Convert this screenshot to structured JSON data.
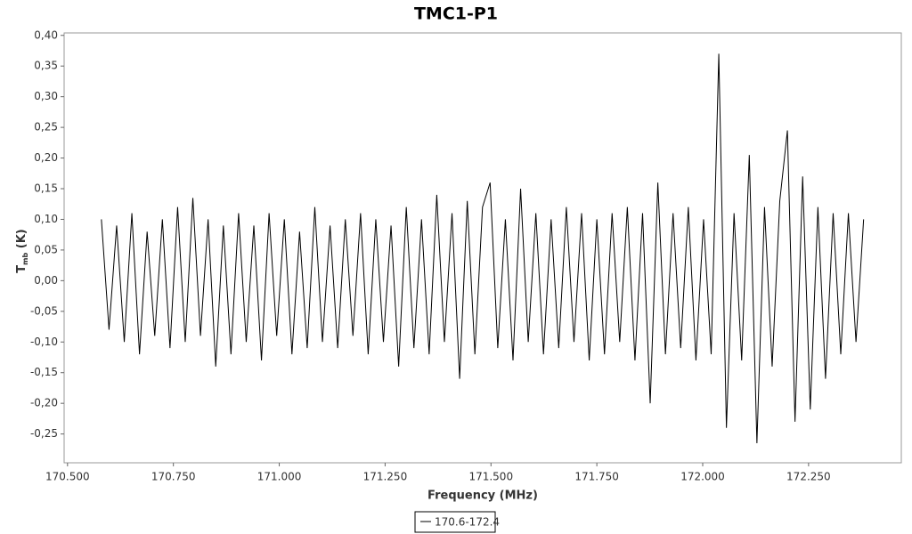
{
  "chart_data": {
    "type": "line",
    "title": "TMC1-P1",
    "x_label": "Frequency (MHz)",
    "y_label_parts": [
      "T",
      "mb",
      " (K)"
    ],
    "xlim": [
      170.492,
      172.469
    ],
    "ylim": [
      -0.297,
      0.404
    ],
    "xticks": [
      {
        "value": 170.5,
        "label": "170.500"
      },
      {
        "value": 170.75,
        "label": "170.750"
      },
      {
        "value": 171.0,
        "label": "171.000"
      },
      {
        "value": 171.25,
        "label": "171.250"
      },
      {
        "value": 171.5,
        "label": "171.500"
      },
      {
        "value": 171.75,
        "label": "171.750"
      },
      {
        "value": 172.0,
        "label": "172.000"
      },
      {
        "value": 172.25,
        "label": "172.250"
      }
    ],
    "yticks": [
      {
        "value": 0.4,
        "label": "0,40"
      },
      {
        "value": 0.35,
        "label": "0,35"
      },
      {
        "value": 0.3,
        "label": "0,30"
      },
      {
        "value": 0.25,
        "label": "0,25"
      },
      {
        "value": 0.2,
        "label": "0,20"
      },
      {
        "value": 0.15,
        "label": "0,15"
      },
      {
        "value": 0.1,
        "label": "0,10"
      },
      {
        "value": 0.05,
        "label": "0,05"
      },
      {
        "value": 0,
        "label": "0,00"
      },
      {
        "value": -0.05,
        "label": "-0,05"
      },
      {
        "value": -0.1,
        "label": "-0,10"
      },
      {
        "value": -0.15,
        "label": "-0,15"
      },
      {
        "value": -0.2,
        "label": "-0,20"
      },
      {
        "value": -0.25,
        "label": "-0,25"
      }
    ],
    "grid": false,
    "legend": "bottom",
    "series": [
      {
        "name": "170.6-172.4",
        "color": "#000000",
        "x": [
          170.58,
          170.598,
          170.616,
          170.634,
          170.652,
          170.67,
          170.688,
          170.706,
          170.724,
          170.742,
          170.76,
          170.778,
          170.796,
          170.814,
          170.832,
          170.85,
          170.868,
          170.886,
          170.904,
          170.922,
          170.94,
          170.958,
          170.976,
          170.994,
          171.012,
          171.03,
          171.048,
          171.066,
          171.084,
          171.102,
          171.12,
          171.138,
          171.156,
          171.174,
          171.192,
          171.21,
          171.228,
          171.246,
          171.264,
          171.282,
          171.3,
          171.318,
          171.336,
          171.354,
          171.372,
          171.39,
          171.408,
          171.426,
          171.444,
          171.462,
          171.48,
          171.498,
          171.516,
          171.534,
          171.552,
          171.57,
          171.588,
          171.606,
          171.624,
          171.642,
          171.66,
          171.678,
          171.696,
          171.714,
          171.732,
          171.75,
          171.768,
          171.786,
          171.804,
          171.822,
          171.84,
          171.858,
          171.876,
          171.894,
          171.912,
          171.93,
          171.948,
          171.966,
          171.984,
          172.002,
          172.02,
          172.038,
          172.056,
          172.074,
          172.092,
          172.11,
          172.128,
          172.146,
          172.164,
          172.182,
          172.2,
          172.218,
          172.236,
          172.254,
          172.272,
          172.29,
          172.308,
          172.326,
          172.344,
          172.362,
          172.38
        ],
        "values": [
          0.1,
          -0.08,
          0.09,
          -0.1,
          0.11,
          -0.12,
          0.08,
          -0.09,
          0.1,
          -0.11,
          0.12,
          -0.1,
          0.135,
          -0.09,
          0.1,
          -0.14,
          0.09,
          -0.12,
          0.11,
          -0.1,
          0.09,
          -0.13,
          0.11,
          -0.09,
          0.1,
          -0.12,
          0.08,
          -0.11,
          0.12,
          -0.1,
          0.09,
          -0.11,
          0.1,
          -0.09,
          0.11,
          -0.12,
          0.1,
          -0.1,
          0.09,
          -0.14,
          0.12,
          -0.11,
          0.1,
          -0.12,
          0.14,
          -0.1,
          0.11,
          -0.16,
          0.13,
          -0.12,
          0.12,
          0.16,
          -0.11,
          0.1,
          -0.13,
          0.15,
          -0.1,
          0.11,
          -0.12,
          0.1,
          -0.11,
          0.12,
          -0.1,
          0.11,
          -0.13,
          0.1,
          -0.12,
          0.11,
          -0.1,
          0.12,
          -0.13,
          0.11,
          -0.2,
          0.16,
          -0.12,
          0.11,
          -0.11,
          0.12,
          -0.13,
          0.1,
          -0.12,
          0.37,
          -0.24,
          0.11,
          -0.13,
          0.205,
          -0.265,
          0.12,
          -0.14,
          0.13,
          0.245,
          -0.23,
          0.17,
          -0.21,
          0.12,
          -0.16,
          0.11,
          -0.12,
          0.11,
          -0.1,
          0.1
        ]
      }
    ]
  }
}
